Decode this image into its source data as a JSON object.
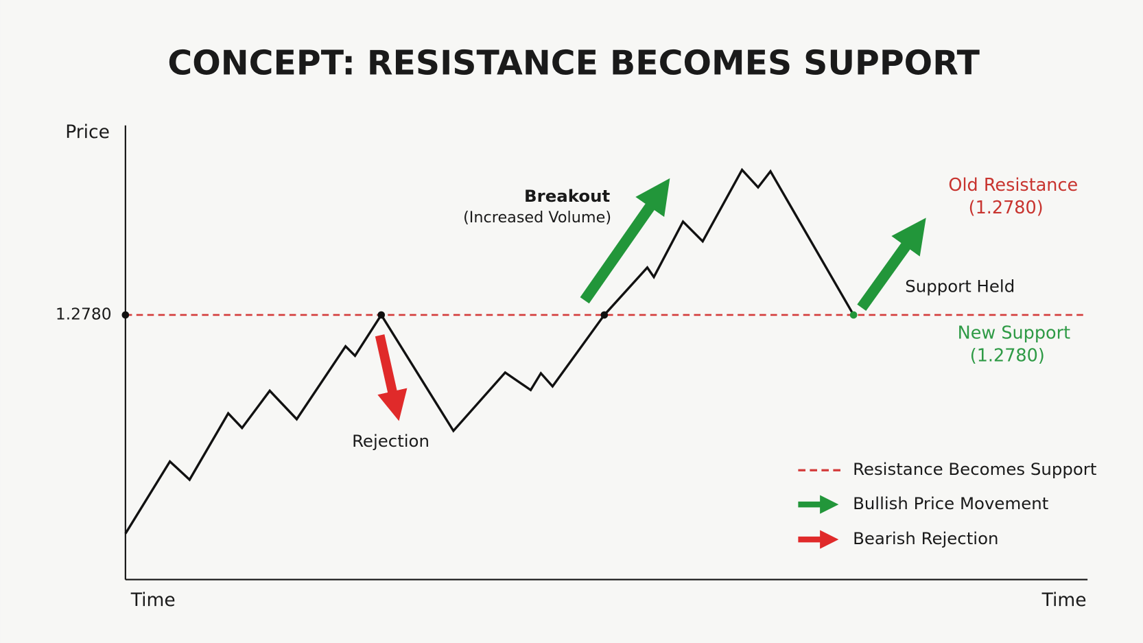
{
  "title": "CONCEPT: RESISTANCE BECOMES SUPPORT",
  "axes": {
    "y_label": "Price",
    "x_label_left": "Time",
    "x_label_right": "Time",
    "level_label": "1.2780"
  },
  "annotations": {
    "breakout": "Breakout",
    "breakout_note": "(Increased Volume)",
    "rejection": "Rejection",
    "support_held": "Support Held",
    "old_resistance": "Old Resistance",
    "old_resistance_value": "(1.2780)",
    "new_support": "New Support",
    "new_support_value": "(1.2780)"
  },
  "legend": [
    {
      "label": "Resistance Becomes Support"
    },
    {
      "label": "Bullish Price Movement"
    },
    {
      "label": "Bearish Rejection"
    }
  ]
}
